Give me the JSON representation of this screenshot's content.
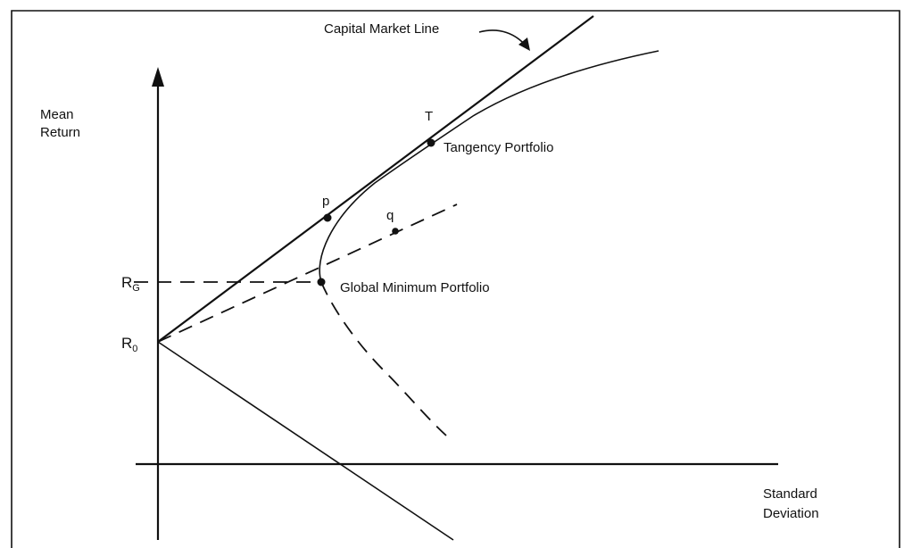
{
  "labels": {
    "capital_market_line": "Capital Market Line",
    "y_axis": [
      "Mean",
      "Return"
    ],
    "x_axis": [
      "Standard",
      "Deviation"
    ],
    "tangency_point": "T",
    "tangency_portfolio": "Tangency Portfolio",
    "point_p": "p",
    "point_q": "q",
    "global_minimum": "Global Minimum Portfolio",
    "r_g": {
      "base": "R",
      "sub": "G"
    },
    "r_0": {
      "base": "R",
      "sub": "0"
    }
  }
}
